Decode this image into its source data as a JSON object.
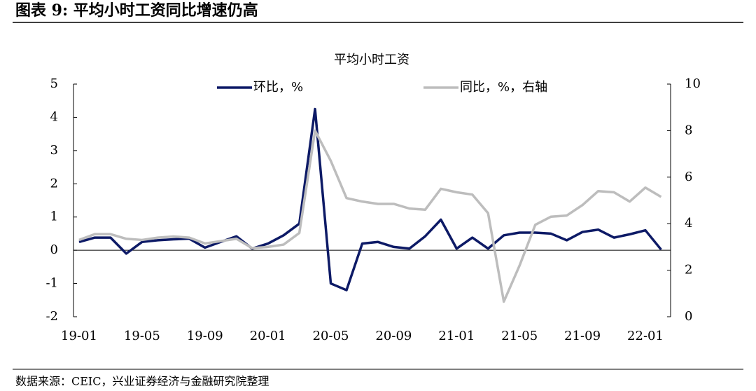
{
  "header": {
    "title": "图表 9: 平均小时工资同比增速仍高"
  },
  "footer": {
    "source": "数据来源：CEIC，兴业证券经济与金融研究院整理"
  },
  "chart_data": {
    "type": "line",
    "title": "平均小时工资",
    "categories": [
      "19-01",
      null,
      null,
      null,
      "19-05",
      null,
      null,
      null,
      "19-09",
      null,
      null,
      null,
      "20-01",
      null,
      null,
      null,
      "20-05",
      null,
      null,
      null,
      "20-09",
      null,
      null,
      null,
      "21-01",
      null,
      null,
      null,
      "21-05",
      null,
      null,
      null,
      "21-09",
      null,
      null,
      null,
      "22-01",
      null
    ],
    "series": [
      {
        "name": "环比，%",
        "color": "#0d1a66",
        "values": [
          0.25,
          0.38,
          0.38,
          -0.1,
          0.25,
          0.3,
          0.33,
          0.35,
          0.08,
          0.25,
          0.42,
          0.05,
          0.2,
          0.45,
          0.8,
          4.25,
          -1.0,
          -1.2,
          0.2,
          0.25,
          0.1,
          0.05,
          0.42,
          0.92,
          0.05,
          0.38,
          0.05,
          0.45,
          0.53,
          0.53,
          0.5,
          0.3,
          0.55,
          0.62,
          0.38,
          0.48,
          0.6,
          0.02
        ]
      },
      {
        "name": "同比，%，右轴",
        "color": "#bdbdbd",
        "axis": "y2",
        "values": [
          3.3,
          3.55,
          3.55,
          3.35,
          3.3,
          3.4,
          3.45,
          3.4,
          3.15,
          3.25,
          3.35,
          2.95,
          3.0,
          3.1,
          3.6,
          8.0,
          6.7,
          5.1,
          4.95,
          4.85,
          4.85,
          4.65,
          4.6,
          5.5,
          5.35,
          5.25,
          4.45,
          0.65,
          2.2,
          3.95,
          4.3,
          4.35,
          4.8,
          5.4,
          5.35,
          4.95,
          5.55,
          5.15
        ]
      }
    ],
    "ylim": [
      -2,
      5
    ],
    "yticks": [
      -2,
      -1,
      0,
      1,
      2,
      3,
      4,
      5
    ],
    "y2lim": [
      0,
      10
    ],
    "y2ticks": [
      0,
      2,
      4,
      6,
      8,
      10
    ],
    "legend": "top"
  }
}
